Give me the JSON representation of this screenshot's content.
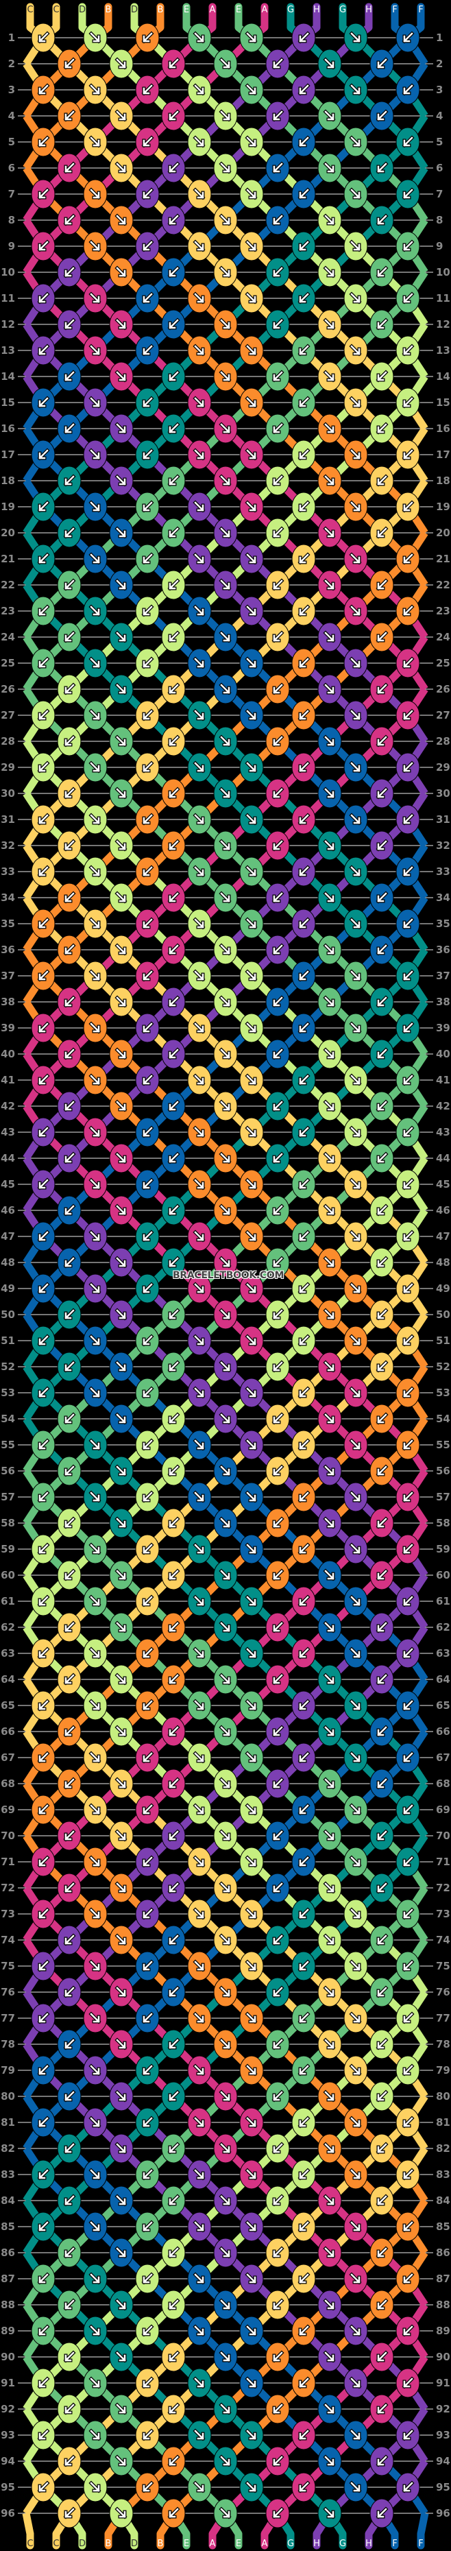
{
  "pattern": {
    "strands_top": [
      "C",
      "C",
      "D",
      "B",
      "D",
      "B",
      "E",
      "A",
      "E",
      "A",
      "G",
      "H",
      "G",
      "H",
      "F",
      "F"
    ],
    "strands_bottom": [
      "C",
      "C",
      "D",
      "B",
      "D",
      "B",
      "E",
      "A",
      "E",
      "A",
      "G",
      "H",
      "G",
      "H",
      "F",
      "F"
    ],
    "colors": {
      "A": "#d63384",
      "B": "#fb8c2c",
      "C": "#fdd161",
      "D": "#c6ef80",
      "E": "#64c17c",
      "F": "#0763ad",
      "G": "#028f88",
      "H": "#7c3fb2"
    },
    "label_text_colors": {
      "A": "#ffffff",
      "B": "#ffffff",
      "C": "#333333",
      "D": "#333333",
      "E": "#ffffff",
      "F": "#ffffff",
      "G": "#ffffff",
      "H": "#ffffff"
    },
    "row_count": 96,
    "odd_row_directions": [
      "bf",
      "f",
      "bf",
      "f",
      "f",
      "bf",
      "f",
      "bf"
    ],
    "even_row_directions": [
      "bf",
      "f",
      "bf",
      "f",
      "bf",
      "f",
      "bf"
    ],
    "direction_legend": {
      "f": "forward ↘",
      "bf": "backward ↙"
    },
    "knot_rows": [
      "CDBEEHGF",
      "BDAEHGF",
      "BCADEHGF",
      "BCADHEF",
      "BCADDFEG",
      "ACHDFEG",
      "ABHCDFEG",
      "ABHCFDG",
      "ABHCCGDE",
      "HBFCGDE",
      "HAFBCGDE",
      "HAFBGCE",
      "HAFBBECD",
      "FAGBECD",
      "FHGABECD",
      "FHGAEBD",
      "FHGAADBC",
      "GHEADBC",
      "GFEHADBC",
      "GFEHDAC",
      "GFEHHCAB",
      "EFDHCAB",
      "EGDFHCAB",
      "EGDFCHB",
      "EGDFFBHA",
      "DGCFBHA",
      "DECGFBHA",
      "DECGBFA",
      "DECGGAFH",
      "CEBGAFH",
      "CDBEGAFH",
      "CDBEAGH",
      "CDBEEHGF",
      "BDAEHGF",
      "BCADEHGF",
      "BCADHEF",
      "BCADDFEG",
      "ACHDFEG",
      "ABHCDFEG",
      "ABHCFDG",
      "ABHCCGDE",
      "HBFCGDE",
      "HAFBCGDE",
      "HAFBGCE",
      "HAFBBECD",
      "FAGBECD",
      "FHGABECD",
      "FHGAEBD",
      "FHGAADBC",
      "GHEADBC",
      "GFEHADBC",
      "GFEHDAC",
      "GFEHHCAB",
      "EFDHCAB",
      "EGDFHCAB",
      "EGDFCHB",
      "EGDFFBHA",
      "DGCFBHA",
      "DECGFBHA",
      "DECGBFA",
      "DECGGAFH",
      "CEBGAFH",
      "CDBEGAFH",
      "CDBEAGH",
      "CDBEEHGF",
      "BDAEHGF",
      "BCADEHGF",
      "BCADHEF",
      "BCADDFEG",
      "ACHDFEG",
      "ABHCDFEG",
      "ABHCFDG",
      "ABHCCGDE",
      "HBFCGDE",
      "HAFBCGDE",
      "HAFBGCE",
      "HAFBBECD",
      "FAGBECD",
      "FHGABECD",
      "FHGAEBD",
      "FHGAADBC",
      "GHEADBC",
      "GFEHADBC",
      "GFEHDAC",
      "GFEHHCAB",
      "EFDHCAB",
      "EGDFHCAB",
      "EGDFCHB",
      "EGDFFBHA",
      "DGCFBHA",
      "DECGFBHA",
      "DECGBFA",
      "DECGGAFH",
      "CEBGAFH",
      "CDBEGAFH",
      "CDBEAGH"
    ]
  },
  "watermark": "BRACELETBOOK.COM"
}
